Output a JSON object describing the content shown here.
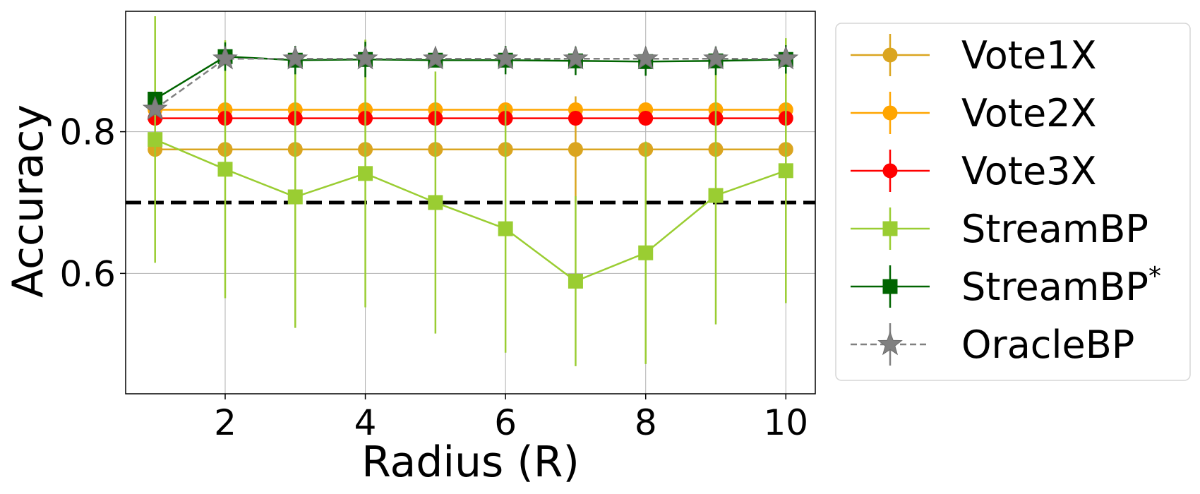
{
  "chart_data": {
    "type": "line",
    "title": "",
    "xlabel": "Radius (R)",
    "ylabel": "Accuracy",
    "x": [
      1,
      2,
      3,
      4,
      5,
      6,
      7,
      8,
      9,
      10
    ],
    "xticks": [
      2,
      4,
      6,
      8,
      10
    ],
    "yticks": [
      0.6,
      0.8
    ],
    "ytick_labels": [
      "0.6",
      "0.8"
    ],
    "xlim": [
      0.58,
      10.42
    ],
    "ylim": [
      0.43,
      0.97
    ],
    "grid": true,
    "legend_position": "outside-right",
    "reference_line": {
      "y": 0.7,
      "style": "dashed",
      "color": "#000000"
    },
    "series": [
      {
        "name": "Vote1X",
        "color": "#DAA520",
        "marker": "circle",
        "linestyle": "solid",
        "values": [
          0.775,
          0.775,
          0.775,
          0.775,
          0.775,
          0.775,
          0.775,
          0.775,
          0.775,
          0.775
        ],
        "errors": [
          0.0,
          0.0,
          0.0,
          0.0,
          0.0,
          0.0,
          0.075,
          0.0,
          0.0,
          0.0
        ]
      },
      {
        "name": "Vote2X",
        "color": "#FFA500",
        "marker": "circle",
        "linestyle": "solid",
        "values": [
          0.831,
          0.831,
          0.831,
          0.831,
          0.831,
          0.831,
          0.831,
          0.831,
          0.831,
          0.831
        ],
        "errors": [
          0,
          0,
          0,
          0,
          0,
          0,
          0,
          0,
          0,
          0
        ]
      },
      {
        "name": "Vote3X",
        "color": "#FF0000",
        "marker": "circle",
        "linestyle": "solid",
        "values": [
          0.819,
          0.819,
          0.819,
          0.819,
          0.819,
          0.819,
          0.819,
          0.819,
          0.819,
          0.819
        ],
        "errors": [
          0,
          0,
          0,
          0,
          0,
          0,
          0,
          0,
          0,
          0
        ]
      },
      {
        "name": "StreamBP",
        "color": "#9ACD32",
        "marker": "square",
        "linestyle": "solid",
        "values": [
          0.789,
          0.747,
          0.708,
          0.741,
          0.7,
          0.663,
          0.589,
          0.629,
          0.71,
          0.745
        ],
        "errors": [
          0.174,
          0.182,
          0.185,
          0.189,
          0.185,
          0.175,
          0.12,
          0.157,
          0.182,
          0.187
        ]
      },
      {
        "name": "StreamBP*",
        "label_suffix": "*",
        "color": "#006400",
        "marker": "square",
        "linestyle": "solid",
        "values": [
          0.846,
          0.906,
          0.901,
          0.902,
          0.901,
          0.901,
          0.9,
          0.899,
          0.9,
          0.902
        ],
        "errors": [
          0,
          0.02,
          0.02,
          0.025,
          0.01,
          0.02,
          0.02,
          0.02,
          0.02,
          0.02
        ]
      },
      {
        "name": "OracleBP",
        "color": "#808080",
        "marker": "star",
        "linestyle": "dashed",
        "values": [
          0.832,
          0.903,
          0.903,
          0.903,
          0.903,
          0.903,
          0.903,
          0.903,
          0.903,
          0.903
        ],
        "errors": [
          0,
          0,
          0,
          0,
          0,
          0,
          0,
          0,
          0,
          0
        ]
      }
    ]
  }
}
